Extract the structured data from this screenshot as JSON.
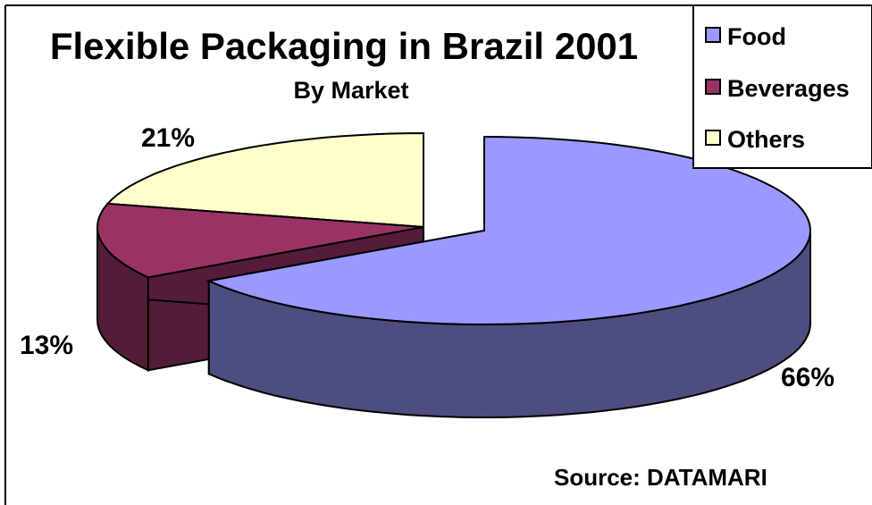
{
  "chart_data": {
    "type": "pie",
    "title": "Flexible Packaging in Brazil 2001",
    "subtitle": "By Market",
    "categories": [
      "Food",
      "Beverages",
      "Others"
    ],
    "values": [
      66,
      13,
      21
    ],
    "value_labels": [
      "66%",
      "13%",
      "21%"
    ],
    "colors": {
      "Food": "#9999ff",
      "Beverages": "#993366",
      "Others": "#ffffcc"
    },
    "legend_position": "top-right",
    "exploded": "Food",
    "three_d": true,
    "source": "Source: DATAMARI"
  }
}
